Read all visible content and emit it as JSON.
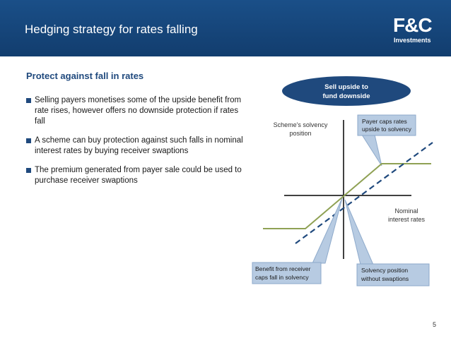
{
  "header": {
    "title": "Hedging strategy for rates falling"
  },
  "logo": {
    "mark": "F&C",
    "sub": "Investments"
  },
  "subtitle": "Protect against fall in rates",
  "bullets": [
    {
      "text": "Selling payers monetises some of the upside benefit from rate rises, however offers no downside protection if rates fall"
    },
    {
      "text": "A scheme can buy protection against such falls in nominal interest rates by buying receiver swaptions"
    },
    {
      "text": "The premium generated from payer sale could be used to purchase receiver swaptions"
    }
  ],
  "diagram": {
    "badge": {
      "line1": "Sell upside to",
      "line2": "fund downside"
    },
    "yaxis": {
      "line1": "Scheme's solvency",
      "line2": "position"
    },
    "xaxis": {
      "line1": "Nominal",
      "line2": "interest rates"
    },
    "callout_payer": {
      "line1": "Payer caps rates",
      "line2": "upside to solvency"
    },
    "callout_receiver": {
      "line1": "Benefit from receiver",
      "line2": "caps fall in solvency"
    },
    "callout_solvency": {
      "line1": "Solvency position",
      "line2": "without swaptions"
    }
  },
  "colors": {
    "header": "#1a4f88",
    "accent": "#1f497d",
    "capped_line": "#8fa154",
    "dashed_line": "#1f497d",
    "callout_fill": "#b7cbe2",
    "callout_border": "#8eaacb"
  },
  "page_number": "5"
}
